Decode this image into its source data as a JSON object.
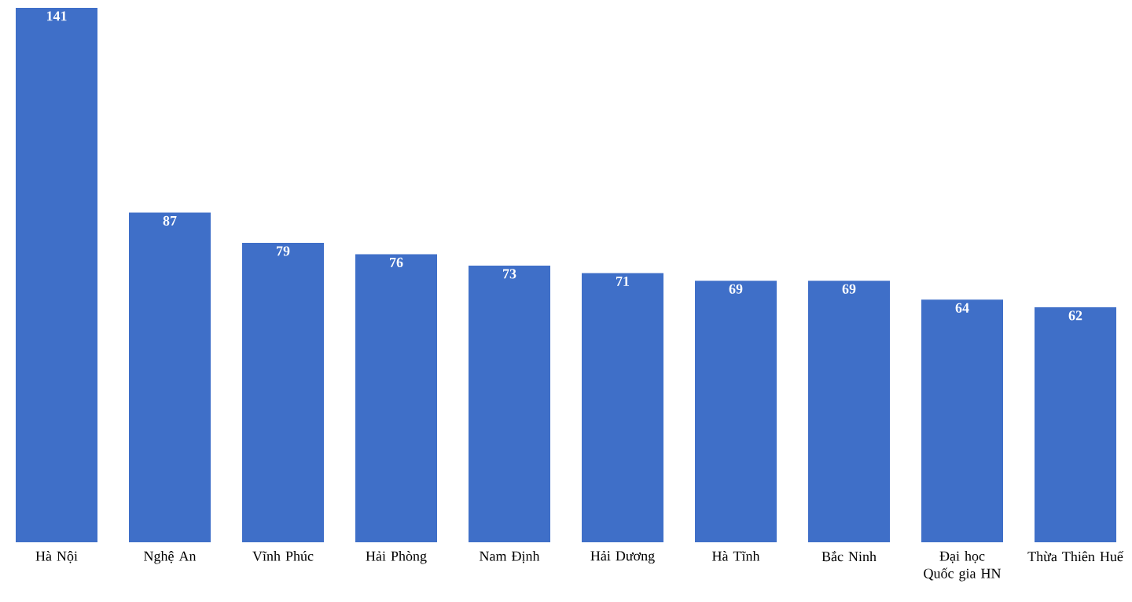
{
  "chart_data": {
    "type": "bar",
    "categories": [
      "Hà Nội",
      "Nghệ An",
      "Vĩnh Phúc",
      "Hải Phòng",
      "Nam Định",
      "Hải Dương",
      "Hà Tĩnh",
      "Bắc Ninh",
      "Đại học Quốc gia HN",
      "Thừa Thiên Huế"
    ],
    "values": [
      141,
      87,
      79,
      76,
      73,
      71,
      69,
      69,
      64,
      62
    ],
    "color": "#3f6fc8",
    "data_labels": true
  }
}
